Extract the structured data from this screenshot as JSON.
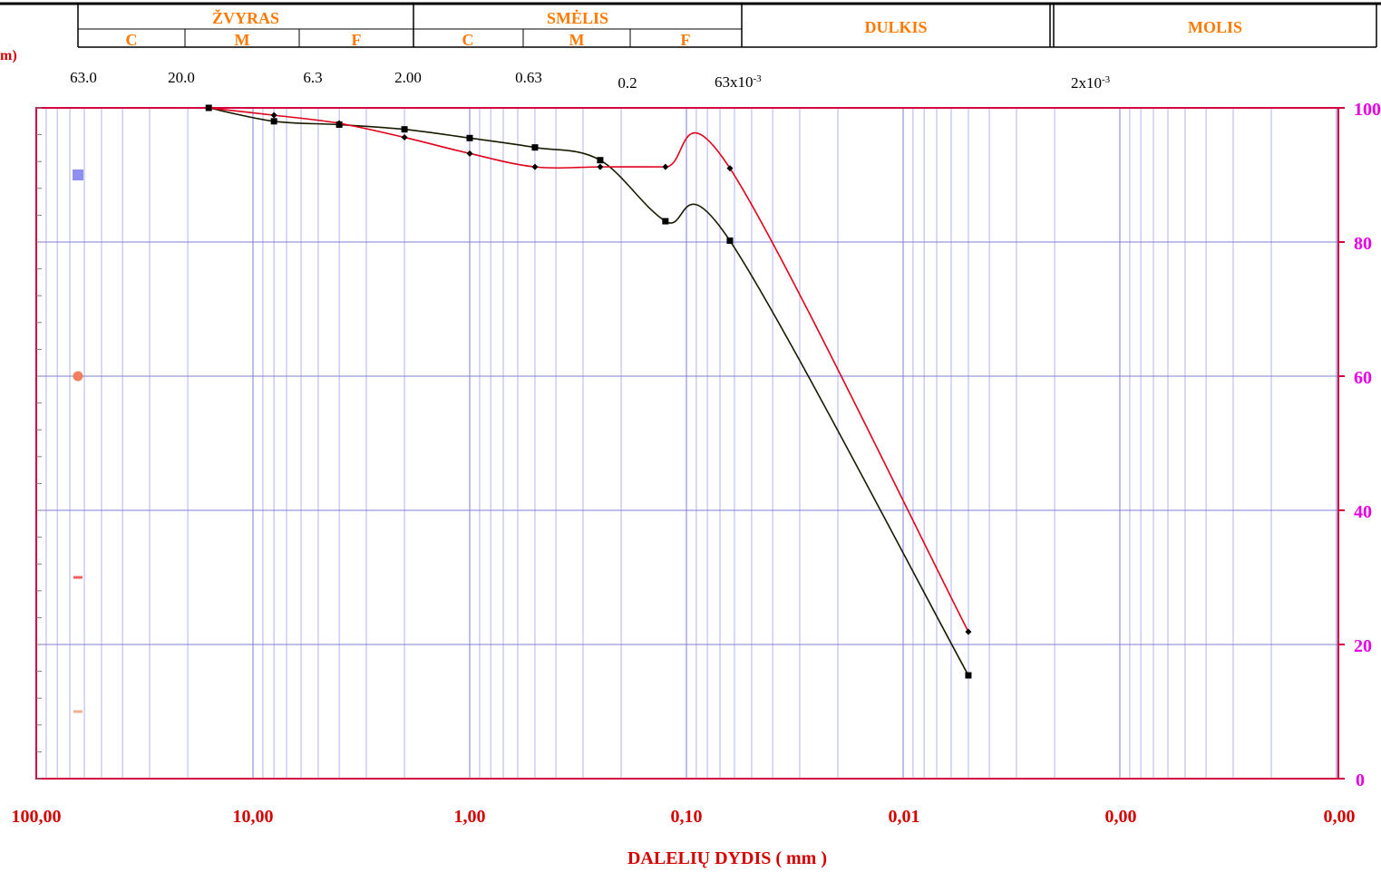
{
  "header": {
    "groups": [
      {
        "label": "ŽVYRAS",
        "sub": [
          "C",
          "M",
          "F"
        ]
      },
      {
        "label": "SMĖLIS",
        "sub": [
          "C",
          "M",
          "F"
        ]
      },
      {
        "label": "DULKIS",
        "sub": []
      },
      {
        "label": "MOLIS",
        "sub": []
      }
    ],
    "cut_label": "m)"
  },
  "size_labels": [
    {
      "text": "63.0"
    },
    {
      "text": "20.0"
    },
    {
      "text": "6.3"
    },
    {
      "text": "2.00"
    },
    {
      "text": "0.63"
    },
    {
      "text": "0.2"
    },
    {
      "text": "63x10",
      "sup": "-3"
    },
    {
      "text": "2x10",
      "sup": "-3"
    }
  ],
  "chart_data": {
    "type": "line",
    "x_scale": "log",
    "x_reversed": true,
    "xlabel": "DALELIŲ DYDIS ( mm )",
    "xlim": [
      100,
      0.0002
    ],
    "x_tick_labels": [
      "100,00",
      "10,00",
      "1,00",
      "0,10",
      "0,01",
      "0,00",
      "0,00"
    ],
    "ylim": [
      0,
      100
    ],
    "y_tick_labels": [
      "0",
      "20",
      "40",
      "60",
      "80",
      "100"
    ],
    "grid": true,
    "series": [
      {
        "color": "#1a1a00",
        "marker": "square",
        "x": [
          16,
          8,
          4,
          2,
          1,
          0.5,
          0.25,
          0.125,
          0.063,
          0.005
        ],
        "y": [
          100,
          98,
          97.5,
          96.8,
          95.5,
          94.1,
          92.2,
          83.1,
          80.2,
          15.4
        ]
      },
      {
        "color": "#e0001a",
        "marker": "diamond",
        "x": [
          16,
          8,
          4,
          2,
          1,
          0.5,
          0.25,
          0.125,
          0.063,
          0.005
        ],
        "y": [
          100,
          98.9,
          97.7,
          95.6,
          93.2,
          91.2,
          91.2,
          91.2,
          91,
          21.9
        ]
      }
    ],
    "legend_markers": [
      {
        "shape": "square",
        "color": "#8f8ff0",
        "y": 90
      },
      {
        "shape": "circle",
        "color": "#f08060",
        "y": 60
      },
      {
        "shape": "dash",
        "color": "#f06060",
        "y": 30
      },
      {
        "shape": "dash",
        "color": "#f0b090",
        "y": 10
      }
    ]
  }
}
